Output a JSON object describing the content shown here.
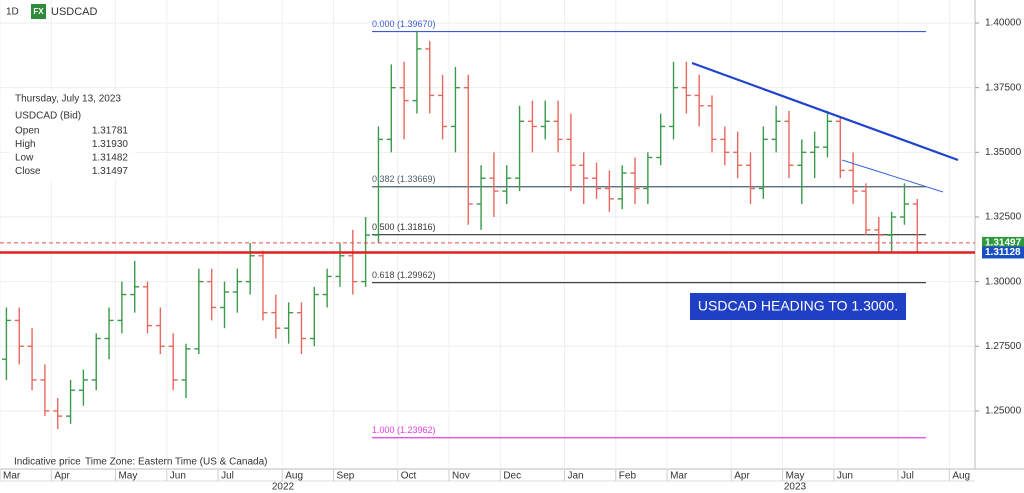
{
  "chart_data": {
    "type": "ohlc",
    "timeframe": "1D",
    "badge": "FX",
    "symbol": "USDCAD",
    "info_panel": {
      "date": "Thursday, July 13, 2023",
      "instrument": "USDCAD (Bid)",
      "rows": [
        [
          "Open",
          "1.31781"
        ],
        [
          "High",
          "1.31930"
        ],
        [
          "Low",
          "1.31482"
        ],
        [
          "Close",
          "1.31497"
        ]
      ]
    },
    "annotation": "USDCAD HEADING TO 1.3000.",
    "footer": [
      "Indicative price",
      "Time Zone: Eastern Time (US & Canada)"
    ],
    "years": [
      "2022",
      "2023"
    ],
    "categories": [
      "Mar",
      null,
      null,
      null,
      "Apr",
      null,
      null,
      null,
      null,
      "May",
      null,
      null,
      null,
      "Jun",
      null,
      null,
      null,
      "Jul",
      null,
      null,
      null,
      null,
      "Aug",
      null,
      null,
      null,
      "Sep",
      null,
      null,
      null,
      null,
      "Oct",
      null,
      null,
      null,
      "Nov",
      null,
      null,
      null,
      "Dec",
      null,
      null,
      null,
      null,
      "Jan",
      null,
      null,
      null,
      "Feb",
      null,
      null,
      null,
      "Mar",
      null,
      null,
      null,
      null,
      "Apr",
      null,
      null,
      null,
      "May",
      null,
      null,
      null,
      "Jun",
      null,
      null,
      null,
      null,
      "Jul",
      null,
      null,
      null,
      "Aug",
      null
    ],
    "open": [
      1.27,
      1.285,
      1.275,
      1.262,
      1.25,
      1.248,
      1.258,
      1.262,
      1.278,
      1.285,
      1.295,
      1.298,
      1.283,
      1.275,
      1.262,
      1.274,
      1.3,
      1.29,
      1.296,
      1.3,
      1.31,
      1.288,
      1.282,
      1.288,
      1.278,
      1.295,
      1.302,
      1.31,
      1.3,
      1.318,
      1.355,
      1.375,
      1.37,
      1.39,
      1.372,
      1.36,
      1.375,
      1.33,
      1.34,
      1.335,
      1.34,
      1.362,
      1.36,
      1.362,
      1.355,
      1.345,
      1.34,
      1.336,
      1.332,
      1.342,
      1.336,
      1.348,
      1.36,
      1.375,
      1.372,
      1.368,
      1.355,
      1.35,
      1.345,
      1.336,
      1.355,
      1.362,
      1.345,
      1.35,
      1.352,
      1.362,
      1.343,
      1.335,
      1.32,
      1.318,
      1.325,
      1.33,
      null,
      null,
      null,
      null
    ],
    "high": [
      1.29,
      1.29,
      1.282,
      1.268,
      1.255,
      1.262,
      1.266,
      1.28,
      1.29,
      1.3,
      1.308,
      1.3,
      1.29,
      1.28,
      1.276,
      1.305,
      1.305,
      1.3,
      1.305,
      1.315,
      1.312,
      1.295,
      1.292,
      1.292,
      1.298,
      1.305,
      1.315,
      1.32,
      1.325,
      1.36,
      1.384,
      1.385,
      1.397,
      1.393,
      1.38,
      1.383,
      1.38,
      1.345,
      1.35,
      1.345,
      1.368,
      1.37,
      1.37,
      1.37,
      1.365,
      1.35,
      1.346,
      1.343,
      1.345,
      1.348,
      1.35,
      1.365,
      1.385,
      1.385,
      1.38,
      1.372,
      1.36,
      1.358,
      1.35,
      1.36,
      1.368,
      1.366,
      1.355,
      1.358,
      1.366,
      1.364,
      1.35,
      1.338,
      1.325,
      1.327,
      1.338,
      1.332,
      null,
      null,
      null,
      null
    ],
    "low": [
      1.262,
      1.268,
      1.258,
      1.248,
      1.243,
      1.245,
      1.252,
      1.258,
      1.27,
      1.28,
      1.288,
      1.28,
      1.272,
      1.258,
      1.255,
      1.272,
      1.285,
      1.282,
      1.288,
      1.295,
      1.285,
      1.278,
      1.276,
      1.272,
      1.275,
      1.29,
      1.298,
      1.295,
      1.298,
      1.315,
      1.35,
      1.355,
      1.365,
      1.365,
      1.355,
      1.35,
      1.322,
      1.32,
      1.325,
      1.33,
      1.335,
      1.35,
      1.355,
      1.35,
      1.335,
      1.33,
      1.332,
      1.327,
      1.328,
      1.33,
      1.33,
      1.345,
      1.355,
      1.365,
      1.36,
      1.35,
      1.345,
      1.34,
      1.33,
      1.332,
      1.35,
      1.34,
      1.33,
      1.34,
      1.348,
      1.34,
      1.33,
      1.318,
      1.311,
      1.311,
      1.322,
      1.311,
      null,
      null,
      null,
      null
    ],
    "close": [
      1.285,
      1.275,
      1.262,
      1.25,
      1.248,
      1.258,
      1.262,
      1.278,
      1.285,
      1.295,
      1.298,
      1.283,
      1.275,
      1.262,
      1.274,
      1.3,
      1.29,
      1.296,
      1.3,
      1.31,
      1.288,
      1.282,
      1.288,
      1.278,
      1.295,
      1.302,
      1.31,
      1.3,
      1.318,
      1.355,
      1.375,
      1.37,
      1.39,
      1.372,
      1.36,
      1.375,
      1.33,
      1.34,
      1.335,
      1.34,
      1.362,
      1.36,
      1.362,
      1.355,
      1.345,
      1.34,
      1.336,
      1.332,
      1.342,
      1.336,
      1.348,
      1.36,
      1.375,
      1.372,
      1.368,
      1.355,
      1.35,
      1.345,
      1.336,
      1.355,
      1.362,
      1.345,
      1.35,
      1.352,
      1.362,
      1.343,
      1.335,
      1.32,
      1.318,
      1.325,
      1.33,
      1.31497,
      null,
      null,
      null,
      null
    ],
    "up_color": "#3a9a4a",
    "down_color": "#e8675e",
    "ylim": [
      1.2318,
      1.4089
    ],
    "yticks": [
      {
        "value": 1.25,
        "label": "1.25000"
      },
      {
        "value": 1.275,
        "label": "1.27500"
      },
      {
        "value": 1.3,
        "label": "1.30000"
      },
      {
        "value": 1.325,
        "label": "1.32500"
      },
      {
        "value": 1.35,
        "label": "1.35000"
      },
      {
        "value": 1.375,
        "label": "1.37500"
      },
      {
        "value": 1.4,
        "label": "1.40000"
      }
    ],
    "grid": true,
    "fib_levels": [
      {
        "value": 1.3967,
        "label": "0.000 (1.39670)",
        "color": "#3b5bd6"
      },
      {
        "value": 1.33669,
        "label": "0.382 (1.33669)",
        "color": "#4a5f6e"
      },
      {
        "value": 1.31816,
        "label": "0.500 (1.31816)",
        "color": "#333333"
      },
      {
        "value": 1.29962,
        "label": "0.618 (1.29962)",
        "color": "#444444"
      },
      {
        "value": 1.23962,
        "label": "1.000 (1.23962)",
        "color": "#e040e0"
      }
    ],
    "price_lines": [
      {
        "value": 1.31497,
        "label": "1.31497",
        "color": "#2e9a3e",
        "dashed": true
      },
      {
        "value": 1.31128,
        "label": "1.31128",
        "color": "#1a4fc4",
        "dashed": false
      }
    ]
  }
}
